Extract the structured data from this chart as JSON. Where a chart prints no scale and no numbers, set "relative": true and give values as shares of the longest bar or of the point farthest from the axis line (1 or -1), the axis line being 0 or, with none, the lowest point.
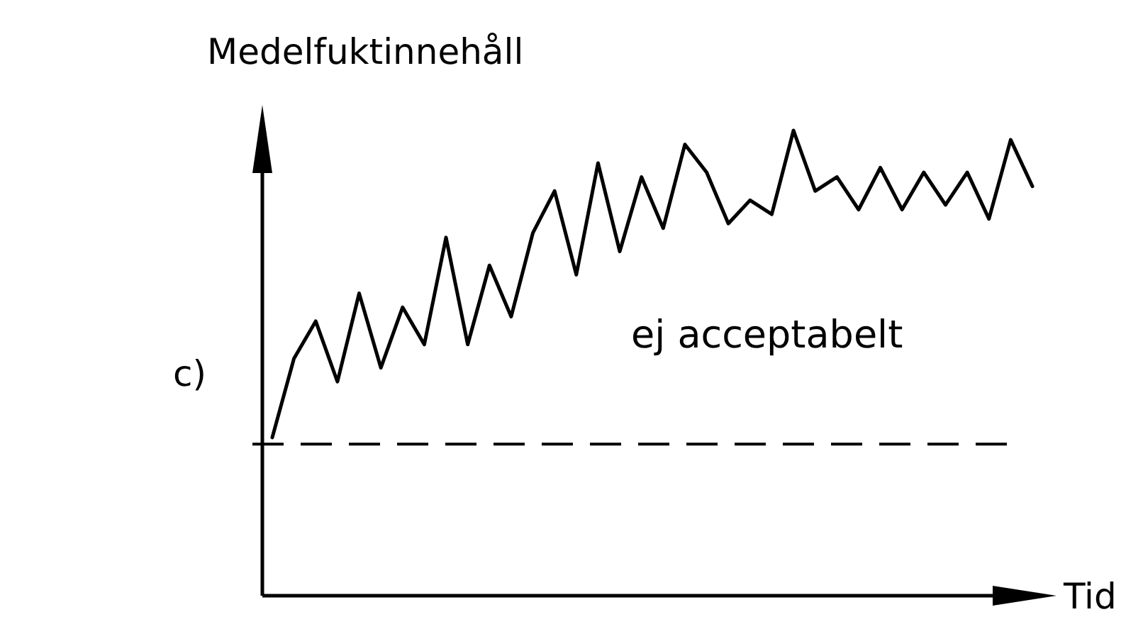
{
  "chart_data": {
    "type": "line",
    "relative": true,
    "ylabel": "Medelfuktinnehåll",
    "xlabel": "Tid",
    "categories": [
      null,
      null,
      null,
      null,
      null,
      null,
      null,
      null,
      null,
      null,
      null,
      null,
      null,
      null,
      null,
      null,
      null,
      null,
      null,
      null,
      null,
      null,
      null,
      null,
      null,
      null,
      null,
      null,
      null,
      null,
      null,
      null,
      null,
      null,
      null,
      null
    ],
    "series": [
      {
        "color": "#000000",
        "values": [
          0.34,
          0.51,
          0.59,
          0.46,
          0.65,
          0.49,
          0.62,
          0.54,
          0.77,
          0.54,
          0.71,
          0.6,
          0.78,
          0.87,
          0.69,
          0.93,
          0.74,
          0.9,
          0.79,
          0.97,
          0.91,
          0.8,
          0.85,
          0.82,
          1,
          0.87,
          0.9,
          0.83,
          0.92,
          0.83,
          0.91,
          0.84,
          0.91,
          0.81,
          0.98,
          0.88
        ]
      }
    ],
    "ref_lines": [
      {
        "axis": "y",
        "value": 0.326,
        "color": "#000000",
        "line_style": "dashed"
      }
    ],
    "annotations": [
      "ej acceptabelt",
      "c)"
    ],
    "marker": "none",
    "line_style": "solid"
  }
}
